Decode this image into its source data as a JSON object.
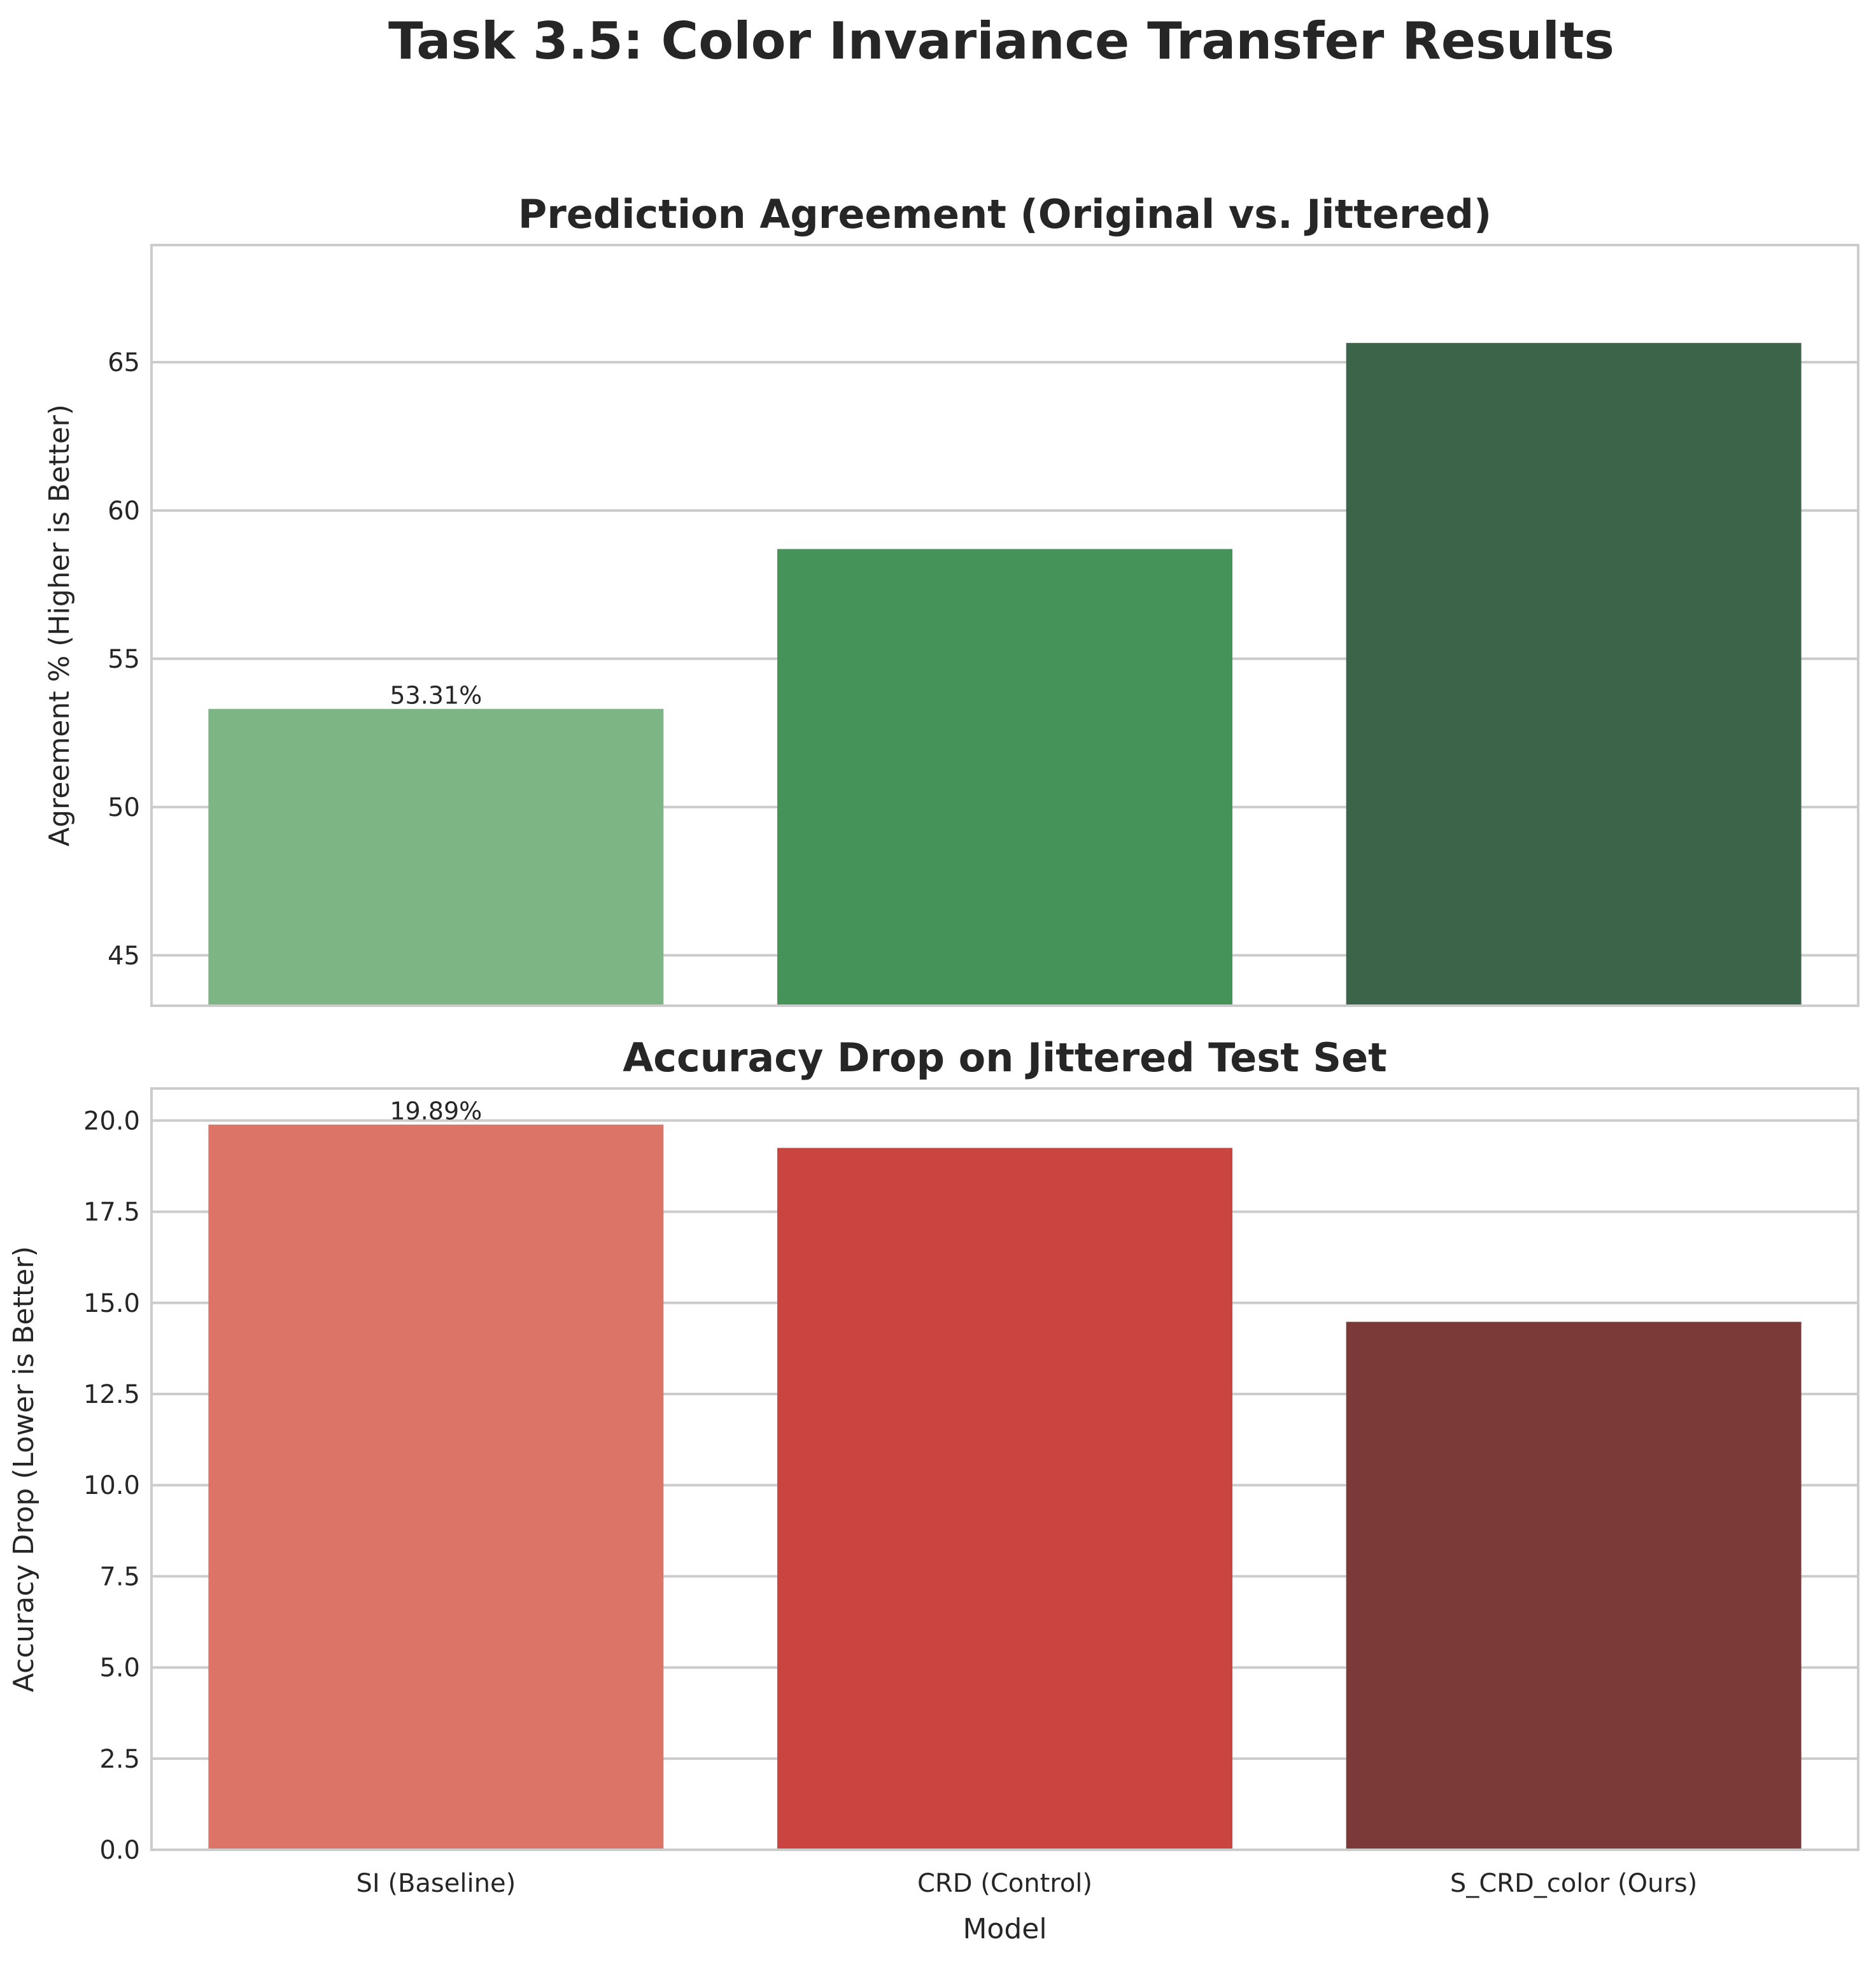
{
  "figure": {
    "title": "Task 3.5: Color Invariance Transfer Results"
  },
  "chart_data": [
    {
      "type": "bar",
      "title": "Prediction Agreement (Original vs. Jittered)",
      "xlabel": "",
      "ylabel": "Agreement % (Higher is Better)",
      "categories": [
        "SI (Baseline)",
        "CRD (Control)",
        "S_CRD_color (Ours)"
      ],
      "values": [
        53.31,
        58.7,
        65.65
      ],
      "colors": [
        "#7db584",
        "#46935a",
        "#3c6449"
      ],
      "ylim": [
        43.3,
        68.95
      ],
      "yticks": [
        45,
        50,
        55,
        60,
        65
      ],
      "data_labels": [
        {
          "index": 0,
          "text": "53.31%"
        }
      ],
      "show_xtick_labels": false,
      "grid": true
    },
    {
      "type": "bar",
      "title": "Accuracy Drop on Jittered Test Set",
      "xlabel": "Model",
      "ylabel": "Accuracy Drop (Lower is Better)",
      "categories": [
        "SI (Baseline)",
        "CRD (Control)",
        "S_CRD_color (Ours)"
      ],
      "values": [
        19.89,
        19.25,
        14.48
      ],
      "colors": [
        "#dc7567",
        "#ca4540",
        "#7b3a37"
      ],
      "ylim": [
        0,
        20.88
      ],
      "yticks": [
        0.0,
        2.5,
        5.0,
        7.5,
        10.0,
        12.5,
        15.0,
        17.5,
        20.0
      ],
      "data_labels": [
        {
          "index": 0,
          "text": "19.89%"
        }
      ],
      "show_xtick_labels": true,
      "grid": true
    }
  ]
}
